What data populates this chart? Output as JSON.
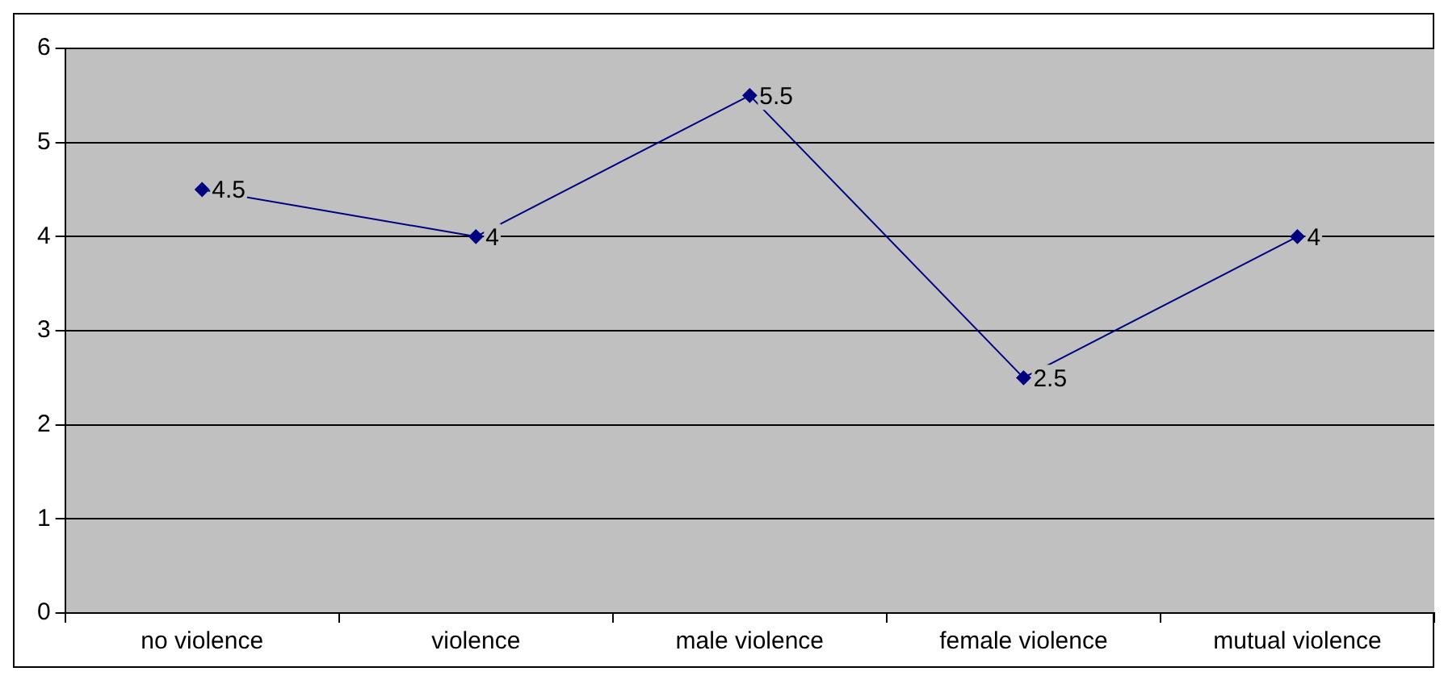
{
  "chart_data": {
    "type": "line",
    "categories": [
      "no violence",
      "violence",
      "male violence",
      "female violence",
      "mutual violence"
    ],
    "series": [
      {
        "color": "#000080",
        "values": [
          4.5,
          4,
          5.5,
          2.5,
          4
        ]
      }
    ],
    "ylim": [
      0,
      6
    ],
    "yticks": [
      0,
      1,
      2,
      3,
      4,
      5,
      6
    ],
    "grid": "y",
    "legend": false,
    "marker": "diamond",
    "line_style": "solid",
    "data_labels": true
  }
}
